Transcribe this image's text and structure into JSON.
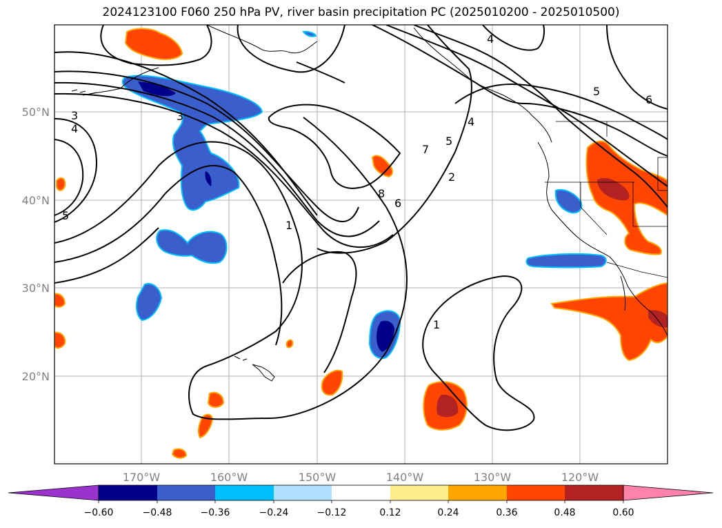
{
  "title": "2024123100 F060 250 hPa PV, river basin precipitation PC (2025010200 - 2025010500)",
  "map": {
    "lon_labels": [
      "170°W",
      "160°W",
      "150°W",
      "140°W",
      "130°W",
      "120°W"
    ],
    "lat_labels": [
      "50°N",
      "40°N",
      "30°N",
      "20°N"
    ],
    "contour_labels": [
      "3",
      "4",
      "3",
      "5",
      "1",
      "8",
      "6",
      "7",
      "5",
      "4",
      "2",
      "1",
      "5",
      "6",
      "4"
    ]
  },
  "colorbar": {
    "colors": [
      "#9a32cd",
      "#00008b",
      "#3a5fcd",
      "#00bfff",
      "#b0e2ff",
      "#ffffff",
      "#ffec8b",
      "#ffa500",
      "#ff4500",
      "#b22222",
      "#ff82ab"
    ],
    "labels": [
      "−0.60",
      "−0.48",
      "−0.36",
      "−0.24",
      "−0.12",
      "0.12",
      "0.24",
      "0.36",
      "0.48",
      "0.60"
    ]
  }
}
